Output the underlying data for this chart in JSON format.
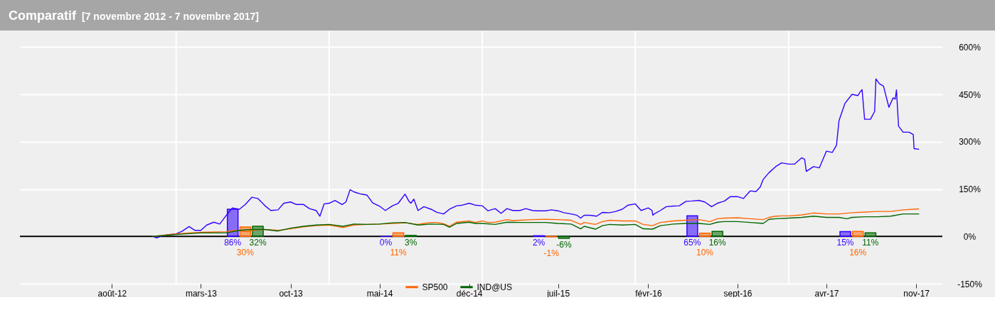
{
  "chart_data": {
    "type": "line",
    "title": "Comparatif",
    "subtitle": "[7 novembre 2012 - 7 novembre 2017]",
    "xlim": [
      "2012-01-03",
      "2017-12-25"
    ],
    "xticks": [
      {
        "value": "2012-08-01",
        "label": "août-12"
      },
      {
        "value": "2013-03-01",
        "label": "mars-13"
      },
      {
        "value": "2013-10-01",
        "label": "oct-13"
      },
      {
        "value": "2014-05-01",
        "label": "mai-14"
      },
      {
        "value": "2014-12-01",
        "label": "déc-14"
      },
      {
        "value": "2015-07-01",
        "label": "juil-15"
      },
      {
        "value": "2016-02-01",
        "label": "févr-16"
      },
      {
        "value": "2016-09-01",
        "label": "sept-16"
      },
      {
        "value": "2017-04-01",
        "label": "avr-17"
      },
      {
        "value": "2017-11-01",
        "label": "nov-17"
      }
    ],
    "ylim": [
      -150,
      650
    ],
    "yticks": [
      {
        "value": -150,
        "label": "-150%"
      },
      {
        "value": 0,
        "label": "0%"
      },
      {
        "value": 150,
        "label": "150%"
      },
      {
        "value": 300,
        "label": "300%"
      },
      {
        "value": 450,
        "label": "450%"
      },
      {
        "value": 600,
        "label": "600%"
      }
    ],
    "grid": "y",
    "legend": "bottom",
    "ref_lines": [
      {
        "axis": "x",
        "value": "2013-01-01",
        "color": "#ffffff"
      },
      {
        "axis": "x",
        "value": "2014-01-01",
        "color": "#ffffff"
      },
      {
        "axis": "x",
        "value": "2015-01-01",
        "color": "#ffffff"
      },
      {
        "axis": "x",
        "value": "2016-01-01",
        "color": "#ffffff"
      },
      {
        "axis": "x",
        "value": "2017-01-01",
        "color": "#ffffff"
      },
      {
        "axis": "y",
        "value": 0,
        "color": "#000000"
      }
    ],
    "series": [
      {
        "type": "bar",
        "color": "#3300ff",
        "x": [
          "2013-05-16",
          "2014-05-16",
          "2015-05-16",
          "2016-05-16",
          "2017-05-16"
        ],
        "values": [
          86,
          0,
          2,
          65,
          15
        ],
        "value_labels": [
          "86%",
          "0%",
          "2%",
          "65%",
          "15%"
        ]
      },
      {
        "type": "bar",
        "color": "#ff6600",
        "x": [
          "2013-06-15",
          "2014-06-15",
          "2015-06-15",
          "2016-06-15",
          "2017-06-15"
        ],
        "values": [
          30,
          11,
          -1,
          10,
          16
        ],
        "value_labels": [
          "30%",
          "11%",
          "-1%",
          "10%",
          "16%"
        ]
      },
      {
        "type": "bar",
        "color": "#006600",
        "x": [
          "2013-07-15",
          "2014-07-15",
          "2015-07-15",
          "2016-07-15",
          "2017-07-15"
        ],
        "values": [
          32,
          3,
          -6,
          16,
          11
        ],
        "value_labels": [
          "32%",
          "3%",
          "-6%",
          "16%",
          "11%"
        ]
      },
      {
        "color": "#3300ff",
        "x": [
          "2012-11-07",
          "2012-11-15",
          "2012-12-01",
          "2012-12-15",
          "2013-01-01",
          "2013-01-15",
          "2013-02-01",
          "2013-02-15",
          "2013-03-01",
          "2013-03-15",
          "2013-04-01",
          "2013-04-15",
          "2013-05-01",
          "2013-05-15",
          "2013-06-01",
          "2013-06-15",
          "2013-07-01",
          "2013-07-15",
          "2013-08-01",
          "2013-08-15",
          "2013-09-01",
          "2013-09-15",
          "2013-10-01",
          "2013-10-15",
          "2013-11-01",
          "2013-11-15",
          "2013-12-01",
          "2013-12-10",
          "2013-12-20",
          "2014-01-01",
          "2014-01-15",
          "2014-02-01",
          "2014-02-10",
          "2014-02-20",
          "2014-03-01",
          "2014-03-15",
          "2014-04-01",
          "2014-04-15",
          "2014-05-01",
          "2014-05-15",
          "2014-06-01",
          "2014-06-15",
          "2014-07-01",
          "2014-07-10",
          "2014-07-15",
          "2014-07-22",
          "2014-08-01",
          "2014-08-15",
          "2014-09-01",
          "2014-09-15",
          "2014-10-01",
          "2014-10-15",
          "2014-11-01",
          "2014-11-15",
          "2014-12-01",
          "2014-12-15",
          "2015-01-01",
          "2015-01-15",
          "2015-02-01",
          "2015-02-15",
          "2015-03-01",
          "2015-03-15",
          "2015-04-01",
          "2015-04-15",
          "2015-05-01",
          "2015-05-15",
          "2015-06-01",
          "2015-06-15",
          "2015-07-01",
          "2015-07-15",
          "2015-08-01",
          "2015-08-15",
          "2015-08-24",
          "2015-09-01",
          "2015-09-15",
          "2015-10-01",
          "2015-10-15",
          "2015-11-01",
          "2015-11-15",
          "2015-12-01",
          "2015-12-15",
          "2016-01-01",
          "2016-01-15",
          "2016-02-01",
          "2016-02-10",
          "2016-02-12",
          "2016-02-15",
          "2016-03-01",
          "2016-03-15",
          "2016-04-01",
          "2016-04-15",
          "2016-05-01",
          "2016-05-15",
          "2016-06-01",
          "2016-06-15",
          "2016-07-01",
          "2016-07-15",
          "2016-08-01",
          "2016-08-15",
          "2016-09-01",
          "2016-09-15",
          "2016-10-01",
          "2016-10-15",
          "2016-10-25",
          "2016-11-01",
          "2016-11-15",
          "2016-12-01",
          "2016-12-15",
          "2017-01-01",
          "2017-01-15",
          "2017-02-01",
          "2017-02-08",
          "2017-02-12",
          "2017-03-01",
          "2017-03-15",
          "2017-04-01",
          "2017-04-15",
          "2017-04-25",
          "2017-05-01",
          "2017-05-15",
          "2017-06-01",
          "2017-06-15",
          "2017-06-20",
          "2017-06-25",
          "2017-07-01",
          "2017-07-15",
          "2017-07-25",
          "2017-07-28",
          "2017-08-05",
          "2017-08-15",
          "2017-08-28",
          "2017-09-07",
          "2017-09-12",
          "2017-09-15",
          "2017-09-20",
          "2017-10-01",
          "2017-10-10",
          "2017-10-15",
          "2017-10-25",
          "2017-10-27",
          "2017-11-07"
        ],
        "values": [
          0,
          -5,
          3,
          6,
          8,
          16,
          31,
          19,
          19,
          36,
          45,
          39,
          67,
          90,
          86,
          101,
          124,
          120,
          97,
          82,
          84,
          105,
          109,
          101,
          101,
          88,
          82,
          64,
          103,
          105,
          114,
          101,
          109,
          148,
          141,
          135,
          131,
          106,
          96,
          82,
          97,
          105,
          134,
          112,
          105,
          118,
          82,
          94,
          86,
          76,
          71,
          86,
          97,
          99,
          105,
          99,
          97,
          81,
          88,
          73,
          88,
          82,
          82,
          88,
          82,
          81,
          81,
          84,
          81,
          75,
          71,
          67,
          58,
          67,
          67,
          64,
          76,
          75,
          79,
          86,
          99,
          103,
          82,
          90,
          82,
          67,
          71,
          82,
          94,
          96,
          97,
          111,
          112,
          114,
          109,
          94,
          105,
          112,
          126,
          126,
          120,
          144,
          142,
          156,
          180,
          202,
          221,
          233,
          229,
          229,
          249,
          244,
          206,
          221,
          217,
          270,
          266,
          289,
          367,
          421,
          450,
          446,
          457,
          465,
          371,
          371,
          396,
          499,
          484,
          476,
          409,
          439,
          435,
          464,
          349,
          330,
          330,
          330,
          323,
          278,
          276
        ]
      },
      {
        "name": "SP500",
        "color": "#ff6600",
        "x": [
          "2012-11-07",
          "2013-01-01",
          "2013-03-01",
          "2013-05-01",
          "2013-05-20",
          "2013-06-20",
          "2013-07-15",
          "2013-08-15",
          "2013-09-01",
          "2013-10-01",
          "2013-11-01",
          "2013-12-01",
          "2014-01-01",
          "2014-02-03",
          "2014-03-01",
          "2014-04-01",
          "2014-05-01",
          "2014-06-01",
          "2014-07-01",
          "2014-08-01",
          "2014-08-15",
          "2014-09-01",
          "2014-09-15",
          "2014-10-01",
          "2014-10-15",
          "2014-11-01",
          "2014-12-01",
          "2014-12-15",
          "2015-01-01",
          "2015-01-15",
          "2015-02-01",
          "2015-03-01",
          "2015-03-15",
          "2015-04-01",
          "2015-05-01",
          "2015-06-01",
          "2015-07-01",
          "2015-08-01",
          "2015-08-24",
          "2015-09-01",
          "2015-09-28",
          "2015-10-15",
          "2015-11-01",
          "2015-12-01",
          "2016-01-01",
          "2016-01-20",
          "2016-02-11",
          "2016-03-01",
          "2016-04-01",
          "2016-05-01",
          "2016-06-01",
          "2016-06-27",
          "2016-07-15",
          "2016-08-01",
          "2016-09-01",
          "2016-10-01",
          "2016-11-01",
          "2016-11-15",
          "2016-12-01",
          "2016-12-15",
          "2017-01-01",
          "2017-02-01",
          "2017-03-01",
          "2017-04-01",
          "2017-05-01",
          "2017-06-01",
          "2017-07-01",
          "2017-08-01",
          "2017-09-01",
          "2017-10-01",
          "2017-11-07"
        ],
        "values": [
          0,
          8,
          13,
          15,
          19,
          15,
          22,
          21,
          19,
          24,
          30,
          34,
          36,
          28,
          36,
          38,
          39,
          41,
          43,
          38,
          41,
          44,
          44,
          40,
          32,
          45,
          49,
          44,
          49,
          44,
          45,
          53,
          50,
          51,
          53,
          54,
          53,
          51,
          38,
          44,
          38,
          47,
          51,
          49,
          49,
          38,
          34,
          44,
          49,
          51,
          53,
          47,
          56,
          58,
          59,
          56,
          53,
          60,
          64,
          65,
          65,
          68,
          74,
          71,
          71,
          75,
          77,
          79,
          79,
          84,
          87
        ]
      },
      {
        "name": "IND@US",
        "color": "#006600",
        "x": [
          "2012-11-07",
          "2013-01-01",
          "2013-03-01",
          "2013-05-01",
          "2013-06-01",
          "2013-07-01",
          "2013-08-01",
          "2013-09-01",
          "2013-10-01",
          "2013-11-01",
          "2013-12-01",
          "2014-01-01",
          "2014-02-03",
          "2014-03-01",
          "2014-04-01",
          "2014-05-01",
          "2014-06-01",
          "2014-07-01",
          "2014-08-01",
          "2014-09-01",
          "2014-10-01",
          "2014-10-15",
          "2014-11-01",
          "2014-12-01",
          "2014-12-15",
          "2015-01-01",
          "2015-02-01",
          "2015-03-01",
          "2015-04-01",
          "2015-05-01",
          "2015-06-01",
          "2015-07-01",
          "2015-08-01",
          "2015-08-24",
          "2015-09-01",
          "2015-09-28",
          "2015-10-15",
          "2015-11-01",
          "2015-12-01",
          "2016-01-01",
          "2016-01-20",
          "2016-02-11",
          "2016-03-01",
          "2016-04-01",
          "2016-05-01",
          "2016-06-01",
          "2016-06-27",
          "2016-07-15",
          "2016-08-01",
          "2016-09-01",
          "2016-10-01",
          "2016-11-01",
          "2016-11-15",
          "2016-12-01",
          "2017-01-01",
          "2017-02-01",
          "2017-03-01",
          "2017-04-01",
          "2017-05-01",
          "2017-05-20",
          "2017-06-01",
          "2017-07-01",
          "2017-08-01",
          "2017-09-01",
          "2017-10-01",
          "2017-11-07"
        ],
        "values": [
          0,
          6,
          11,
          11,
          19,
          22,
          22,
          17,
          26,
          32,
          36,
          38,
          32,
          39,
          38,
          39,
          43,
          44,
          36,
          39,
          38,
          29,
          41,
          45,
          41,
          41,
          38,
          45,
          44,
          44,
          44,
          41,
          39,
          24,
          32,
          23,
          34,
          38,
          36,
          38,
          24,
          23,
          34,
          39,
          41,
          41,
          38,
          45,
          47,
          47,
          44,
          41,
          54,
          56,
          58,
          60,
          64,
          60,
          60,
          56,
          60,
          62,
          62,
          64,
          71,
          71
        ]
      }
    ]
  }
}
